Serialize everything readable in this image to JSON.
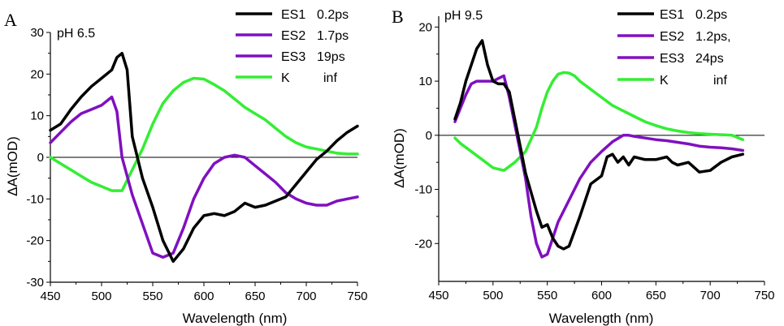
{
  "chart_data": [
    {
      "panel_label": "A",
      "type": "line",
      "condition_label": "pH 6.5",
      "xlabel": "Wavelength (nm)",
      "ylabel": "ΔA(mOD)",
      "xlim": [
        450,
        750
      ],
      "ylim": [
        -30,
        30
      ],
      "xticks": [
        "450",
        "500",
        "550",
        "600",
        "650",
        "700",
        "750"
      ],
      "yticks": [
        "30",
        "20",
        "10",
        "0",
        "-10",
        "-20",
        "-30"
      ],
      "xtick_values": [
        450,
        500,
        550,
        600,
        650,
        700,
        750
      ],
      "ytick_values": [
        30,
        20,
        10,
        0,
        -10,
        -20,
        -30
      ],
      "zero_line": true,
      "legend_position": "top-right",
      "series": [
        {
          "name": "ES1",
          "time": "0.2ps",
          "color": "#000000",
          "x": [
            450,
            460,
            470,
            480,
            490,
            500,
            510,
            515,
            520,
            525,
            530,
            540,
            550,
            560,
            570,
            580,
            590,
            600,
            610,
            620,
            630,
            640,
            650,
            660,
            670,
            680,
            690,
            700,
            710,
            720,
            730,
            740,
            750
          ],
          "y": [
            6.5,
            8,
            11.5,
            14.5,
            17,
            19,
            21,
            24,
            25,
            21,
            5,
            -5,
            -12,
            -20,
            -25,
            -22,
            -17,
            -14,
            -13.5,
            -14,
            -13,
            -11,
            -12,
            -11.5,
            -10.5,
            -9.5,
            -6.5,
            -3.5,
            -0.5,
            1.5,
            4,
            6,
            7.5
          ]
        },
        {
          "name": "ES2",
          "time": "1.7ps",
          "color": "#8010c0",
          "x": [
            450,
            460,
            470,
            480,
            490,
            500,
            510,
            515,
            520,
            530,
            540,
            550,
            560,
            570,
            580,
            590,
            600,
            610,
            620,
            630,
            640,
            650,
            660,
            670,
            680,
            690,
            700,
            710,
            720,
            730,
            740,
            750
          ],
          "y": [
            3.5,
            6,
            8.5,
            10.5,
            11.5,
            12.5,
            14.5,
            11,
            0,
            -9,
            -16,
            -23,
            -24,
            -23,
            -17,
            -10,
            -5,
            -1.5,
            0,
            0.5,
            0,
            -2,
            -4,
            -6,
            -8.5,
            -10,
            -11,
            -11.5,
            -11.5,
            -10.5,
            -10,
            -9.5
          ]
        },
        {
          "name": "ES3",
          "time": "19ps",
          "color": "#8010c0",
          "x": [],
          "y": []
        },
        {
          "name": "K",
          "time": "inf",
          "color": "#33ee33",
          "x": [
            450,
            460,
            470,
            480,
            490,
            500,
            510,
            520,
            530,
            540,
            550,
            560,
            570,
            580,
            590,
            600,
            610,
            620,
            630,
            640,
            650,
            660,
            670,
            680,
            690,
            700,
            710,
            720,
            730,
            740,
            750
          ],
          "y": [
            0,
            -1.5,
            -3,
            -4.5,
            -6,
            -7,
            -8,
            -8,
            -3,
            2,
            8,
            13,
            16,
            18,
            19,
            18.8,
            17.5,
            16,
            14,
            12,
            10.5,
            9,
            7,
            5,
            3.5,
            2.5,
            2,
            1.5,
            1,
            0.8,
            0.8
          ]
        }
      ]
    },
    {
      "panel_label": "B",
      "type": "line",
      "condition_label": "pH 9.5",
      "xlabel": "Wavelength (nm)",
      "ylabel": "ΔA(mOD)",
      "xlim": [
        450,
        750
      ],
      "ylim": [
        -27,
        22
      ],
      "xticks": [
        "450",
        "500",
        "550",
        "600",
        "650",
        "700",
        "750"
      ],
      "yticks": [
        "20",
        "10",
        "0",
        "-10",
        "-20"
      ],
      "xtick_values": [
        450,
        500,
        550,
        600,
        650,
        700,
        750
      ],
      "ytick_values": [
        20,
        10,
        0,
        -10,
        -20
      ],
      "zero_line": true,
      "legend_position": "top-right",
      "series": [
        {
          "name": "ES1",
          "time": "0.2ps",
          "color": "#000000",
          "x": [
            465,
            470,
            475,
            480,
            485,
            490,
            495,
            500,
            505,
            510,
            515,
            520,
            525,
            530,
            540,
            545,
            550,
            555,
            560,
            565,
            570,
            580,
            590,
            600,
            605,
            610,
            615,
            620,
            625,
            630,
            640,
            650,
            660,
            665,
            670,
            680,
            690,
            700,
            710,
            720,
            730
          ],
          "y": [
            3,
            6,
            10,
            13,
            16,
            17.5,
            13,
            10,
            9.5,
            9.5,
            8,
            3,
            -2,
            -7,
            -14,
            -17,
            -16.5,
            -19,
            -20.5,
            -21,
            -20.5,
            -15,
            -9,
            -7.5,
            -4,
            -3.5,
            -5,
            -4,
            -5.5,
            -4,
            -4.5,
            -4.5,
            -4,
            -5,
            -5.5,
            -5,
            -6.8,
            -6.5,
            -5,
            -4,
            -3.5
          ]
        },
        {
          "name": "ES2",
          "time": "1.2ps,",
          "color": "#8010c0",
          "x": [
            465,
            470,
            475,
            480,
            485,
            490,
            495,
            500,
            505,
            510,
            515,
            520,
            525,
            530,
            535,
            540,
            545,
            550,
            555,
            560,
            570,
            580,
            590,
            600,
            610,
            620,
            625,
            630,
            640,
            650,
            660,
            670,
            680,
            690,
            700,
            710,
            720,
            730
          ],
          "y": [
            2.5,
            5,
            7.5,
            9.5,
            10,
            10,
            10,
            10,
            10.5,
            11,
            7,
            2,
            -3,
            -8,
            -15,
            -20,
            -22.5,
            -22,
            -19,
            -16,
            -12,
            -8,
            -5,
            -3,
            -1.2,
            0,
            0,
            -0.2,
            -0.5,
            -0.8,
            -1,
            -1.3,
            -1.6,
            -2,
            -2.2,
            -2.3,
            -2.5,
            -2.8
          ]
        },
        {
          "name": "ES3",
          "time": "24ps",
          "color": "#8010c0",
          "x": [],
          "y": []
        },
        {
          "name": "K",
          "time": "inf",
          "color": "#33ee33",
          "x": [
            465,
            470,
            480,
            490,
            500,
            510,
            520,
            530,
            540,
            545,
            550,
            555,
            560,
            565,
            570,
            575,
            580,
            590,
            600,
            610,
            620,
            630,
            640,
            650,
            660,
            670,
            680,
            690,
            700,
            710,
            720,
            730
          ],
          "y": [
            -0.5,
            -1.5,
            -3,
            -4.5,
            -6,
            -6.5,
            -5,
            -3,
            1.5,
            5,
            8,
            10,
            11.3,
            11.6,
            11.5,
            11,
            10,
            8.5,
            7,
            5.5,
            4.5,
            3.5,
            2.5,
            1.8,
            1.2,
            0.8,
            0.5,
            0.3,
            0.2,
            0.1,
            0,
            -0.8
          ]
        }
      ]
    }
  ]
}
